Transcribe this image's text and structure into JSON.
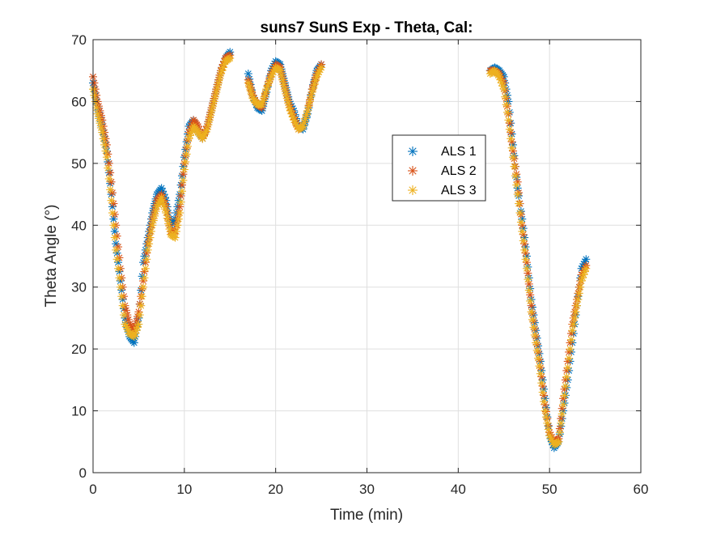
{
  "chart_data": {
    "type": "scatter",
    "title": "suns7 SunS Exp - Theta, Cal:",
    "xlabel": "Time (min)",
    "ylabel": "Theta Angle (°)",
    "xlim": [
      0,
      60
    ],
    "ylim": [
      0,
      70
    ],
    "xticks": [
      "0",
      "10",
      "20",
      "30",
      "40",
      "50",
      "60"
    ],
    "yticks": [
      "0",
      "10",
      "20",
      "30",
      "40",
      "50",
      "60",
      "70"
    ],
    "grid": true,
    "legend_position": "top-right (inside)",
    "marker": "*",
    "series": [
      {
        "name": "ALS 1",
        "color": "#0072BD",
        "segments": [
          {
            "x": [
              0.0,
              0.5,
              1.0,
              1.5,
              2.0,
              2.5,
              3.0,
              3.5,
              4.0,
              4.5,
              5.0,
              5.5,
              6.0,
              6.5,
              7.0,
              7.5,
              8.0,
              8.5,
              9.0,
              9.5,
              10.0,
              10.5,
              11.0,
              11.5,
              12.0,
              12.5,
              13.0,
              13.5,
              14.0,
              14.5,
              15.0
            ],
            "y": [
              63.0,
              59.0,
              56.0,
              52.0,
              45.0,
              37.0,
              31.0,
              25.0,
              22.0,
              21.0,
              25.0,
              34.0,
              38.0,
              42.0,
              45.0,
              46.0,
              44.0,
              40.0,
              41.0,
              45.0,
              51.0,
              56.0,
              57.0,
              55.0,
              54.0,
              56.0,
              59.0,
              62.0,
              65.0,
              67.0,
              68.0
            ]
          },
          {
            "x": [
              17.0,
              17.5,
              18.0,
              18.5,
              19.0,
              19.5,
              20.0,
              20.5,
              21.0,
              21.5,
              22.0,
              22.5,
              23.0,
              23.5,
              24.0,
              24.5,
              25.0
            ],
            "y": [
              64.5,
              61.0,
              59.0,
              58.5,
              61.5,
              65.0,
              66.5,
              66.0,
              63.0,
              60.0,
              58.5,
              56.0,
              55.5,
              58.0,
              62.0,
              65.0,
              66.0
            ]
          },
          {
            "x": [
              43.5,
              44.0,
              44.5,
              45.0,
              45.5,
              46.0,
              46.5,
              47.0,
              47.5,
              48.0,
              48.5,
              49.0,
              49.5,
              50.0,
              50.5,
              51.0,
              51.5,
              52.0,
              52.5,
              53.0,
              53.5,
              54.0
            ],
            "y": [
              65.0,
              65.5,
              65.0,
              64.0,
              60.0,
              53.0,
              46.0,
              41.0,
              35.0,
              28.0,
              23.0,
              18.0,
              12.0,
              6.0,
              4.0,
              5.0,
              10.0,
              15.0,
              21.0,
              27.0,
              33.0,
              34.5
            ]
          }
        ]
      },
      {
        "name": "ALS 2",
        "color": "#D95319",
        "segments": [
          {
            "x": [
              0.0,
              0.5,
              1.0,
              1.5,
              2.0,
              2.5,
              3.0,
              3.5,
              4.0,
              4.5,
              5.0,
              5.5,
              6.0,
              6.5,
              7.0,
              7.5,
              8.0,
              8.5,
              9.0,
              9.5,
              10.0,
              10.5,
              11.0,
              11.5,
              12.0,
              12.5,
              13.0,
              13.5,
              14.0,
              14.5,
              15.0
            ],
            "y": [
              64.0,
              60.0,
              57.0,
              53.0,
              47.0,
              40.0,
              33.0,
              27.0,
              24.0,
              23.0,
              26.0,
              31.0,
              37.0,
              41.0,
              44.0,
              45.0,
              43.0,
              39.0,
              39.0,
              43.0,
              50.0,
              55.0,
              57.0,
              56.0,
              54.0,
              56.0,
              59.0,
              62.0,
              65.0,
              67.0,
              67.5
            ]
          },
          {
            "x": [
              17.0,
              17.5,
              18.0,
              18.5,
              19.0,
              19.5,
              20.0,
              20.5,
              21.0,
              21.5,
              22.0,
              22.5,
              23.0,
              23.5,
              24.0,
              24.5,
              25.0
            ],
            "y": [
              63.5,
              61.0,
              59.5,
              59.0,
              62.0,
              64.5,
              66.0,
              65.5,
              62.5,
              59.5,
              57.5,
              55.5,
              56.0,
              58.5,
              62.0,
              64.5,
              66.0
            ]
          },
          {
            "x": [
              43.5,
              44.0,
              44.5,
              45.0,
              45.5,
              46.0,
              46.5,
              47.0,
              47.5,
              48.0,
              48.5,
              49.0,
              49.5,
              50.0,
              50.5,
              51.0,
              51.5,
              52.0,
              52.5,
              53.0,
              53.5,
              54.0
            ],
            "y": [
              65.0,
              65.0,
              64.5,
              63.0,
              58.0,
              52.0,
              47.0,
              40.0,
              34.0,
              27.0,
              22.0,
              17.0,
              11.0,
              6.5,
              5.0,
              5.5,
              12.0,
              18.0,
              24.0,
              28.0,
              32.0,
              33.5
            ]
          }
        ]
      },
      {
        "name": "ALS 3",
        "color": "#EDB120",
        "segments": [
          {
            "x": [
              0.0,
              0.5,
              1.0,
              1.5,
              2.0,
              2.5,
              3.0,
              3.5,
              4.0,
              4.5,
              5.0,
              5.5,
              6.0,
              6.5,
              7.0,
              7.5,
              8.0,
              8.5,
              9.0,
              9.5,
              10.0,
              10.5,
              11.0,
              11.5,
              12.0,
              12.5,
              13.0,
              13.5,
              14.0,
              14.5,
              15.0
            ],
            "y": [
              62.0,
              58.0,
              55.0,
              51.0,
              44.0,
              36.0,
              30.0,
              24.0,
              22.5,
              22.0,
              24.0,
              30.0,
              36.0,
              40.0,
              43.0,
              44.5,
              42.0,
              38.5,
              38.0,
              42.0,
              49.0,
              54.0,
              56.0,
              55.0,
              54.0,
              55.5,
              58.5,
              61.5,
              64.5,
              66.5,
              67.0
            ]
          },
          {
            "x": [
              17.0,
              17.5,
              18.0,
              18.5,
              19.0,
              19.5,
              20.0,
              20.5,
              21.0,
              21.5,
              22.0,
              22.5,
              23.0,
              23.5,
              24.0,
              24.5,
              25.0
            ],
            "y": [
              63.0,
              60.5,
              59.5,
              59.5,
              62.0,
              64.0,
              65.5,
              65.0,
              62.0,
              59.0,
              57.0,
              55.5,
              56.0,
              58.5,
              61.5,
              64.0,
              65.5
            ]
          },
          {
            "x": [
              43.5,
              44.0,
              44.5,
              45.0,
              45.5,
              46.0,
              46.5,
              47.0,
              47.5,
              48.0,
              48.5,
              49.0,
              49.5,
              50.0,
              50.5,
              51.0,
              51.5,
              52.0,
              52.5,
              53.0,
              53.5,
              54.0
            ],
            "y": [
              64.5,
              65.0,
              64.0,
              62.0,
              57.0,
              51.0,
              45.0,
              39.0,
              33.0,
              26.0,
              21.0,
              16.0,
              10.0,
              6.0,
              4.5,
              5.0,
              11.0,
              17.0,
              23.0,
              27.0,
              31.0,
              33.0
            ]
          }
        ]
      }
    ]
  }
}
